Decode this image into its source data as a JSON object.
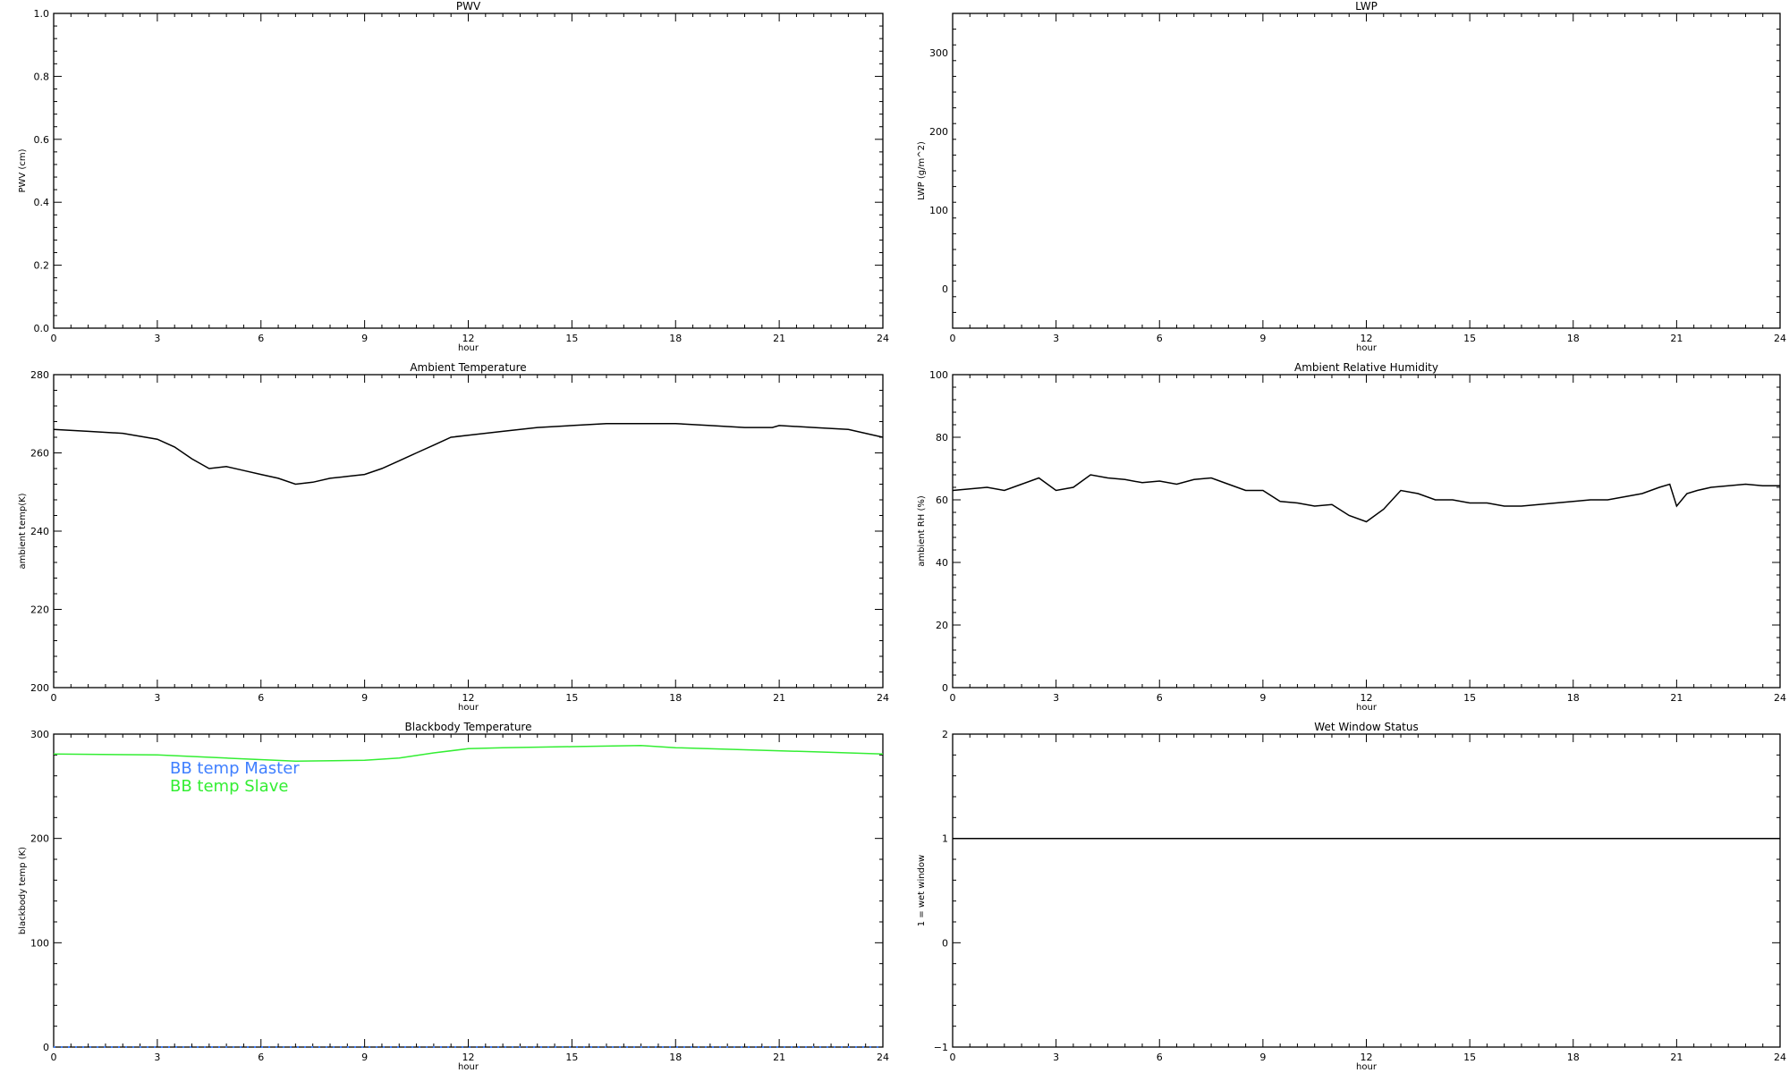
{
  "chart_data": [
    {
      "id": "pwv",
      "type": "line",
      "title": "PWV",
      "xlabel": "hour",
      "ylabel": "PWV (cm)",
      "xlim": [
        0,
        24
      ],
      "ylim": [
        0.0,
        1.0
      ],
      "xticks": [
        "0",
        "3",
        "6",
        "9",
        "12",
        "15",
        "18",
        "21",
        "24"
      ],
      "yticks": [
        "0.0",
        "0.2",
        "0.4",
        "0.6",
        "0.8",
        "1.0"
      ],
      "series": []
    },
    {
      "id": "lwp",
      "type": "line",
      "title": "LWP",
      "xlabel": "hour",
      "ylabel": "LWP (g/m^2)",
      "xlim": [
        0,
        24
      ],
      "ylim": [
        -50,
        350
      ],
      "xticks": [
        "0",
        "3",
        "6",
        "9",
        "12",
        "15",
        "18",
        "21",
        "24"
      ],
      "yticks": [
        "0",
        "100",
        "200",
        "300"
      ],
      "series": []
    },
    {
      "id": "ambient-temperature",
      "type": "line",
      "title": "Ambient Temperature",
      "xlabel": "hour",
      "ylabel": "ambient temp(K)",
      "xlim": [
        0,
        24
      ],
      "ylim": [
        200,
        280
      ],
      "xticks": [
        "0",
        "3",
        "6",
        "9",
        "12",
        "15",
        "18",
        "21",
        "24"
      ],
      "yticks": [
        "200",
        "220",
        "240",
        "260",
        "280"
      ],
      "series": [
        {
          "color": "#000000",
          "x": [
            0,
            1,
            2,
            3,
            3.5,
            4,
            4.5,
            5,
            5.5,
            6,
            6.5,
            7,
            7.5,
            8,
            8.5,
            9,
            9.5,
            10,
            10.5,
            11,
            11.5,
            12,
            13,
            14,
            15,
            16,
            17,
            18,
            19,
            20,
            20.8,
            21,
            22,
            23,
            24
          ],
          "y": [
            266,
            265.5,
            265,
            263.5,
            261.5,
            258.5,
            256,
            256.5,
            255.5,
            254.5,
            253.5,
            252,
            252.5,
            253.5,
            254,
            254.5,
            256,
            258,
            260,
            262,
            264,
            264.5,
            265.5,
            266.5,
            267,
            267.5,
            267.5,
            267.5,
            267,
            266.5,
            266.5,
            267,
            266.5,
            266,
            264
          ]
        }
      ]
    },
    {
      "id": "ambient-relative-humidity",
      "type": "line",
      "title": "Ambient Relative Humidity",
      "xlabel": "hour",
      "ylabel": "ambient RH (%)",
      "xlim": [
        0,
        24
      ],
      "ylim": [
        0,
        100
      ],
      "xticks": [
        "0",
        "3",
        "6",
        "9",
        "12",
        "15",
        "18",
        "21",
        "24"
      ],
      "yticks": [
        "0",
        "20",
        "40",
        "60",
        "80",
        "100"
      ],
      "series": [
        {
          "color": "#000000",
          "x": [
            0,
            0.5,
            1,
            1.5,
            2,
            2.5,
            3,
            3.5,
            4,
            4.5,
            5,
            5.5,
            6,
            6.5,
            7,
            7.5,
            8,
            8.5,
            9,
            9.5,
            10,
            10.5,
            11,
            11.5,
            12,
            12.5,
            13,
            13.5,
            14,
            14.5,
            15,
            15.5,
            16,
            16.5,
            17,
            17.5,
            18,
            18.5,
            19,
            19.5,
            20,
            20.5,
            20.8,
            21,
            21.3,
            21.6,
            22,
            22.5,
            23,
            23.5,
            24
          ],
          "y": [
            63,
            63.5,
            64,
            63,
            65,
            67,
            63,
            64,
            68,
            67,
            66.5,
            65.5,
            66,
            65,
            66.5,
            67,
            65,
            63,
            63,
            59.5,
            59,
            58,
            58.5,
            55,
            53,
            57,
            63,
            62,
            60,
            60,
            59,
            59,
            58,
            58,
            58.5,
            59,
            59.5,
            60,
            60,
            61,
            62,
            64,
            65,
            58,
            62,
            63,
            64,
            64.5,
            65,
            64.5,
            64.5
          ]
        }
      ]
    },
    {
      "id": "blackbody-temperature",
      "type": "line",
      "title": "Blackbody Temperature",
      "xlabel": "hour",
      "ylabel": "blackbody temp (K)",
      "xlim": [
        0,
        24
      ],
      "ylim": [
        0,
        300
      ],
      "xticks": [
        "0",
        "3",
        "6",
        "9",
        "12",
        "15",
        "18",
        "21",
        "24"
      ],
      "yticks": [
        "0",
        "100",
        "200",
        "300"
      ],
      "legend": "top-left",
      "series": [
        {
          "name": "BB temp Master",
          "color": "#3f7fff",
          "style": "dotted",
          "x": [
            0,
            24
          ],
          "y": [
            0,
            0
          ]
        },
        {
          "name": "BB temp Slave",
          "color": "#33ee33",
          "style": "solid",
          "x": [
            0,
            3,
            5,
            7,
            9,
            10,
            11,
            12,
            13,
            15,
            17,
            18,
            20,
            22,
            24
          ],
          "y": [
            281,
            280,
            277,
            274,
            275,
            277,
            282,
            286,
            287,
            288,
            289,
            287,
            285,
            283,
            281
          ]
        }
      ]
    },
    {
      "id": "wet-window-status",
      "type": "line",
      "title": "Wet Window Status",
      "xlabel": "hour",
      "ylabel": "1 = wet window",
      "xlim": [
        0,
        24
      ],
      "ylim": [
        -1,
        2
      ],
      "xticks": [
        "0",
        "3",
        "6",
        "9",
        "12",
        "15",
        "18",
        "21",
        "24"
      ],
      "yticks": [
        "−1",
        "0",
        "1",
        "2"
      ],
      "series": [
        {
          "color": "#000000",
          "x": [
            0,
            24
          ],
          "y": [
            1,
            1
          ]
        }
      ]
    }
  ]
}
